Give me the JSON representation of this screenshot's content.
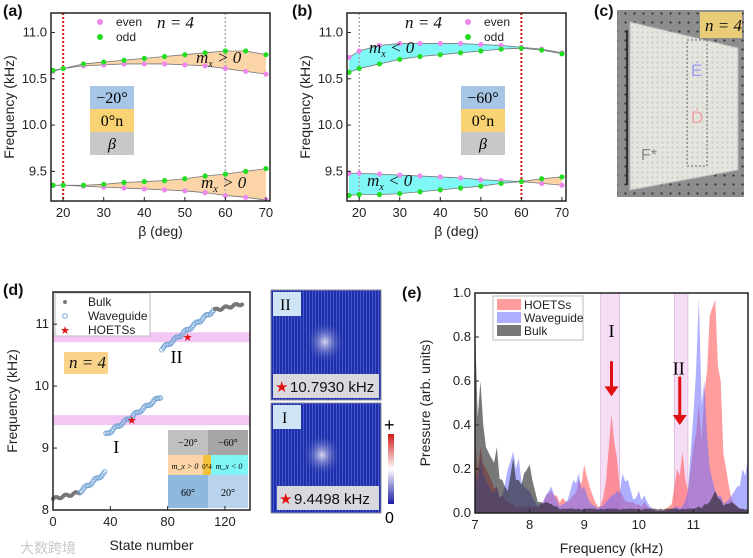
{
  "panel_labels": {
    "a": "(a)",
    "b": "(b)",
    "c": "(c)",
    "d": "(d)",
    "e": "(e)"
  },
  "n_label": "n = 4",
  "panel_c": {
    "n_label": "n = 4",
    "marker_E": "Ė",
    "marker_D": "Ḋ",
    "marker_F": "F*"
  },
  "panel_d_images": {
    "II": {
      "label": "II",
      "freq": "10.7930 kHz"
    },
    "I": {
      "label": "I",
      "freq": "9.4498 kHz"
    },
    "colorbar": {
      "max": "+",
      "min": "0"
    },
    "star": "★"
  },
  "watermark": "大数跨境",
  "colors": {
    "even": "#ee88ee",
    "odd": "#22dd22",
    "mx_pos": "#fbd5a8",
    "mx_neg": "#7ff7f7",
    "red": "#e01010"
  },
  "chart_data": [
    {
      "id": "a",
      "type": "scatter",
      "xlabel": "β (deg)",
      "ylabel": "Frequency (kHz)",
      "xlim": [
        17,
        71
      ],
      "ylim": [
        9.18,
        11.21
      ],
      "xticks": [
        20,
        30,
        40,
        50,
        60,
        70
      ],
      "yticks": [
        "9.5",
        "10.0",
        "10.5",
        "11.0"
      ],
      "legend": [
        "even",
        "odd"
      ],
      "legend_position": "top-left",
      "vlines": [
        {
          "x": 20,
          "color": "red"
        },
        {
          "x": 60,
          "color": "gray"
        }
      ],
      "annotations": [
        "m_x > 0",
        "m_x > 0"
      ],
      "inset": [
        "−20°",
        "0°n",
        "β"
      ],
      "x": [
        17.5,
        20,
        25,
        30,
        35,
        40,
        45,
        50,
        55,
        60,
        65,
        70
      ],
      "series": [
        {
          "name": "even",
          "band": "upper",
          "values": [
            10.58,
            10.61,
            10.64,
            10.65,
            10.66,
            10.66,
            10.66,
            10.65,
            10.64,
            10.61,
            10.58,
            10.55
          ]
        },
        {
          "name": "odd",
          "band": "upper",
          "values": [
            10.59,
            10.61,
            10.66,
            10.68,
            10.7,
            10.72,
            10.74,
            10.76,
            10.78,
            10.8,
            10.8,
            10.76
          ]
        },
        {
          "name": "even",
          "band": "lower",
          "values": [
            9.35,
            9.35,
            9.34,
            9.33,
            9.32,
            9.31,
            9.3,
            9.29,
            9.27,
            9.24,
            9.22,
            9.19
          ]
        },
        {
          "name": "odd",
          "band": "lower",
          "values": [
            9.35,
            9.35,
            9.35,
            9.36,
            9.38,
            9.39,
            9.4,
            9.42,
            9.45,
            9.47,
            9.5,
            9.53
          ]
        }
      ]
    },
    {
      "id": "b",
      "type": "scatter",
      "xlabel": "β (deg)",
      "ylabel": "Frequency (kHz)",
      "xlim": [
        17,
        71
      ],
      "ylim": [
        9.18,
        11.21
      ],
      "xticks": [
        20,
        30,
        40,
        50,
        60,
        70
      ],
      "yticks": [
        "9.5",
        "10.0",
        "10.5",
        "11.0"
      ],
      "legend": [
        "even",
        "odd"
      ],
      "legend_position": "top-right",
      "vlines": [
        {
          "x": 20,
          "color": "gray"
        },
        {
          "x": 60,
          "color": "red"
        }
      ],
      "annotations": [
        "m_x < 0",
        "m_x < 0"
      ],
      "inset": [
        "−60°",
        "0°n",
        "β"
      ],
      "x": [
        17.5,
        20,
        25,
        30,
        35,
        40,
        45,
        50,
        55,
        60,
        65,
        70
      ],
      "series": [
        {
          "name": "even",
          "band": "upper",
          "values": [
            10.73,
            10.8,
            10.86,
            10.88,
            10.88,
            10.88,
            10.88,
            10.87,
            10.86,
            10.84,
            10.82,
            10.78
          ]
        },
        {
          "name": "odd",
          "band": "upper",
          "values": [
            10.57,
            10.61,
            10.66,
            10.71,
            10.74,
            10.76,
            10.78,
            10.8,
            10.82,
            10.83,
            10.81,
            10.77
          ]
        },
        {
          "name": "even",
          "band": "lower",
          "values": [
            9.48,
            9.48,
            9.47,
            9.46,
            9.45,
            9.44,
            9.43,
            9.41,
            9.4,
            9.39,
            9.37,
            9.35
          ]
        },
        {
          "name": "odd",
          "band": "lower",
          "values": [
            9.24,
            9.25,
            9.25,
            9.26,
            9.28,
            9.3,
            9.32,
            9.34,
            9.37,
            9.39,
            9.42,
            9.44
          ]
        }
      ]
    },
    {
      "id": "d",
      "type": "scatter",
      "xlabel": "State number",
      "ylabel": "Frequency (kHz)",
      "xlim": [
        0,
        137.5
      ],
      "ylim": [
        8,
        11.52
      ],
      "xticks": [
        0,
        40,
        80,
        120
      ],
      "yticks": [
        "8",
        "9",
        "10",
        "11"
      ],
      "legend": [
        "Bulk",
        "Waveguide",
        "HOETSs"
      ],
      "legend_position": "top-left",
      "bands": [
        9.45,
        10.79
      ],
      "band_labels": [
        {
          "text": "I",
          "x": 56,
          "y": 9.05
        },
        {
          "text": "II",
          "x": 96,
          "y": 10.5
        }
      ],
      "segments": [
        {
          "type": "Bulk",
          "from": 0,
          "to": 18,
          "f_from": 8.18,
          "f_to": 8.28
        },
        {
          "type": "Waveguide",
          "from": 19,
          "to": 36,
          "f_from": 8.3,
          "f_to": 8.6
        },
        {
          "type": "Waveguide",
          "from": 37,
          "to": 75,
          "f_from": 9.22,
          "f_to": 9.83
        },
        {
          "type": "Waveguide",
          "from": 76,
          "to": 112,
          "f_from": 10.6,
          "f_to": 11.22
        },
        {
          "type": "Bulk",
          "from": 113,
          "to": 132,
          "f_from": 11.23,
          "f_to": 11.33
        }
      ],
      "hoetss": [
        {
          "x": 55,
          "y": 9.45
        },
        {
          "x": 94,
          "y": 10.79
        }
      ],
      "inset": {
        "top": [
          "−20°",
          "−60°"
        ],
        "middle": [
          "m_x > 0",
          "0°4",
          "m_x < 0"
        ],
        "bottom": [
          "60°",
          "20°"
        ]
      }
    },
    {
      "id": "e",
      "type": "area",
      "xlabel": "Frequency (kHz)",
      "ylabel": "Pressure (arb. units)",
      "xlim": [
        7,
        12
      ],
      "ylim": [
        0,
        1
      ],
      "xticks": [
        7,
        8,
        9,
        10,
        11
      ],
      "yticks": [
        "0.0",
        "0.2",
        "0.4",
        "0.6",
        "0.8",
        "1.0"
      ],
      "legend_position": "top-left",
      "highlight": [
        {
          "label": "I",
          "from": 9.3,
          "to": 9.65,
          "arrow": 9.5
        },
        {
          "label": "II",
          "from": 10.65,
          "to": 10.9,
          "arrow": 10.75
        }
      ],
      "x_start": 7,
      "x_step": 0.1,
      "series": [
        {
          "name": "HOETSs",
          "values": [
            0.35,
            0.3,
            0.2,
            0.15,
            0.12,
            0.08,
            0.05,
            0.04,
            0.03,
            0.03,
            0.03,
            0.03,
            0.04,
            0.08,
            0.1,
            0.08,
            0.07,
            0.05,
            0.08,
            0.15,
            0.22,
            0.12,
            0.05,
            0.03,
            0.15,
            0.45,
            0.25,
            0.08,
            0.05,
            0.05,
            0.04,
            0.05,
            0.02,
            0.01,
            0.01,
            0.02,
            0.04,
            0.2,
            0.28,
            0.1,
            0.3,
            0.5,
            0.55,
            0.9,
            0.97,
            0.6,
            0.2,
            0.06,
            0.03,
            0.02,
            0.01
          ]
        },
        {
          "name": "Waveguide",
          "values": [
            0.2,
            0.25,
            0.15,
            0.1,
            0.12,
            0.08,
            0.2,
            0.28,
            0.25,
            0.12,
            0.1,
            0.05,
            0.04,
            0.08,
            0.12,
            0.06,
            0.04,
            0.06,
            0.15,
            0.18,
            0.12,
            0.05,
            0.03,
            0.03,
            0.05,
            0.08,
            0.1,
            0.18,
            0.15,
            0.06,
            0.1,
            0.08,
            0.03,
            0.01,
            0.01,
            0.01,
            0.02,
            0.03,
            0.03,
            0.1,
            0.45,
            0.98,
            0.6,
            0.2,
            0.1,
            0.08,
            0.05,
            0.08,
            0.12,
            0.2,
            0.25
          ]
        },
        {
          "name": "Bulk",
          "values": [
            0.85,
            0.6,
            0.3,
            0.25,
            0.3,
            0.15,
            0.1,
            0.25,
            0.15,
            0.18,
            0.22,
            0.1,
            0.05,
            0.05,
            0.04,
            0.03,
            0.02,
            0.02,
            0.02,
            0.02,
            0.02,
            0.02,
            0.02,
            0.02,
            0.02,
            0.02,
            0.02,
            0.02,
            0.02,
            0.02,
            0.02,
            0.02,
            0.02,
            0.02,
            0.02,
            0.02,
            0.02,
            0.02,
            0.02,
            0.02,
            0.02,
            0.03,
            0.04,
            0.05,
            0.1,
            0.06,
            0.04,
            0.05,
            0.03,
            0.02,
            0.02
          ]
        }
      ]
    }
  ]
}
